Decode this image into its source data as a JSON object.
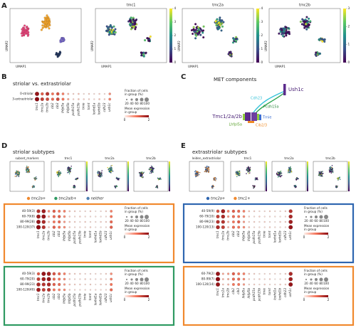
{
  "genes": [
    "tmc1",
    "tmc2a",
    "tmc2b",
    "cib2",
    "cib3",
    "lhfpl5a",
    "lhfpl5b",
    "pcdh15a",
    "pcdh15b",
    "tmie",
    "tomt",
    "loxhd1a",
    "loxhd1b",
    "cdh23",
    "ush1c"
  ],
  "size_legend": {
    "title": [
      "Fraction of cells",
      "in group (%)"
    ],
    "ticks": [
      20,
      40,
      60,
      80,
      100
    ]
  },
  "color_legend": {
    "title": [
      "Mean expression",
      "in group"
    ],
    "ticks": [
      0,
      2
    ]
  },
  "panel_a": {
    "letter": "A",
    "x_label": "UMAP1",
    "y_label": "UMAP2",
    "umaps": [
      {
        "title": "tmc1",
        "colorbar_ticks": [
          0,
          1,
          2,
          3,
          4
        ]
      },
      {
        "title": "tmc2a",
        "colorbar_ticks": [
          0,
          1,
          2,
          3,
          4
        ]
      },
      {
        "title": "tmc2b",
        "colorbar_ticks": [
          0,
          1,
          2,
          3
        ]
      }
    ]
  },
  "panel_b": {
    "letter": "B",
    "title": "striolar vs. extrastriolar",
    "rows": [
      "0-striolar",
      "3-extrastriolar"
    ],
    "expression": [
      [
        1.9,
        1.2,
        1.6,
        1.0,
        1.3,
        0.9,
        0.5,
        0.3,
        0.4,
        0.2,
        0.3,
        0.2,
        0.3,
        0.2,
        0.8
      ],
      [
        2.0,
        1.5,
        1.4,
        1.1,
        1.4,
        1.0,
        0.6,
        0.3,
        0.4,
        0.3,
        0.3,
        0.2,
        0.4,
        0.3,
        0.9
      ]
    ]
  },
  "panel_c": {
    "letter": "C",
    "title": "MET components",
    "labels": {
      "ush1c": "Ush1c",
      "cdh23": "Cdh23",
      "pcdh15a": "Pcdh15a",
      "tmc": "Tmc1/2a/2b",
      "tmie": "Tmie",
      "lhfpl5a": "Lhfpl5a",
      "cib": "Cib2/3"
    }
  },
  "panel_d": {
    "letter": "D",
    "title": "striolar subtypes",
    "umap_titles": [
      "subset_markers",
      "tmc1",
      "tmc2a",
      "tmc2b"
    ],
    "legend": [
      {
        "name": "tmc2a+",
        "color": "#f0892e"
      },
      {
        "name": "tmc2a/b+",
        "color": "#2f9a62"
      },
      {
        "name": "neither",
        "color": "#4f7fb0"
      }
    ],
    "plots": [
      {
        "color": "#f0892e",
        "rows": [
          "40-59(3)",
          "60-79(8)",
          "80-99(28)",
          "100-120(37)"
        ],
        "expression": [
          [
            1.6,
            1.8,
            0.8,
            1.2,
            1.0,
            0.9,
            0.4,
            0.3,
            0.2,
            0.2,
            0.3,
            0.1,
            0.2,
            0.3,
            0.9
          ],
          [
            1.8,
            1.9,
            0.6,
            1.1,
            1.2,
            0.8,
            0.3,
            0.2,
            0.3,
            0.2,
            0.2,
            0.2,
            0.2,
            0.2,
            1.0
          ],
          [
            1.9,
            1.7,
            0.5,
            1.0,
            1.1,
            0.7,
            0.4,
            0.3,
            0.2,
            0.3,
            0.2,
            0.2,
            0.3,
            0.3,
            1.1
          ],
          [
            2.0,
            1.6,
            0.4,
            1.2,
            1.0,
            0.8,
            0.3,
            0.2,
            0.2,
            0.2,
            0.3,
            0.1,
            0.2,
            0.2,
            1.2
          ]
        ]
      },
      {
        "color": "#2f9a62",
        "rows": [
          "40-59(3)",
          "60-79(20)",
          "80-99(23)",
          "100-120(40)"
        ],
        "expression": [
          [
            1.2,
            1.9,
            1.8,
            1.3,
            1.1,
            0.9,
            0.4,
            0.3,
            0.3,
            0.2,
            0.2,
            0.2,
            0.2,
            0.3,
            0.8
          ],
          [
            1.5,
            1.8,
            1.9,
            1.1,
            1.0,
            0.8,
            0.3,
            0.2,
            0.2,
            0.3,
            0.2,
            0.2,
            0.2,
            0.2,
            0.9
          ],
          [
            1.7,
            1.6,
            1.7,
            1.2,
            1.1,
            0.7,
            0.4,
            0.3,
            0.3,
            0.2,
            0.3,
            0.1,
            0.3,
            0.3,
            1.0
          ],
          [
            1.8,
            1.5,
            1.6,
            1.0,
            0.9,
            0.8,
            0.3,
            0.2,
            0.2,
            0.2,
            0.2,
            0.2,
            0.2,
            0.2,
            1.1
          ]
        ]
      }
    ]
  },
  "panel_e": {
    "letter": "E",
    "title": "extrastriolar subtypes",
    "umap_titles": [
      "leiden_extrastriolar",
      "tmc1",
      "tmc2a",
      "tmc2b"
    ],
    "legend": [
      {
        "name": "tmc2a+",
        "color": "#2f66b0"
      },
      {
        "name": "tmc1+",
        "color": "#f0892e"
      }
    ],
    "plots": [
      {
        "color": "#2f66b0",
        "rows": [
          "40-59(9)",
          "60-79(10)",
          "80-99(23)",
          "100-120(13)"
        ],
        "expression": [
          [
            1.3,
            1.8,
            0.9,
            1.2,
            1.1,
            0.9,
            0.4,
            0.3,
            0.2,
            0.2,
            0.3,
            0.2,
            0.2,
            0.3,
            1.6
          ],
          [
            1.5,
            1.7,
            0.7,
            1.1,
            1.0,
            0.8,
            0.3,
            0.2,
            0.3,
            0.2,
            0.2,
            0.2,
            0.2,
            0.2,
            1.7
          ],
          [
            1.6,
            1.6,
            0.6,
            1.0,
            1.2,
            0.7,
            0.3,
            0.3,
            0.2,
            0.3,
            0.2,
            0.1,
            0.3,
            0.3,
            1.8
          ],
          [
            1.7,
            1.5,
            0.5,
            1.1,
            1.0,
            0.8,
            0.4,
            0.2,
            0.2,
            0.2,
            0.3,
            0.2,
            0.2,
            0.2,
            1.9
          ]
        ]
      },
      {
        "color": "#f0892e",
        "rows": [
          "60-79(2)",
          "80-99(7)",
          "100-120(14)"
        ],
        "expression": [
          [
            1.9,
            0.6,
            0.7,
            1.2,
            1.0,
            0.9,
            0.4,
            0.3,
            0.2,
            0.2,
            0.2,
            0.2,
            0.2,
            0.3,
            1.7
          ],
          [
            2.0,
            0.5,
            0.6,
            1.1,
            1.1,
            0.8,
            0.3,
            0.2,
            0.3,
            0.2,
            0.3,
            0.1,
            0.2,
            0.2,
            1.8
          ],
          [
            1.9,
            0.4,
            0.5,
            1.0,
            1.0,
            0.7,
            0.3,
            0.3,
            0.2,
            0.3,
            0.2,
            0.2,
            0.3,
            0.3,
            1.9
          ]
        ]
      }
    ]
  }
}
